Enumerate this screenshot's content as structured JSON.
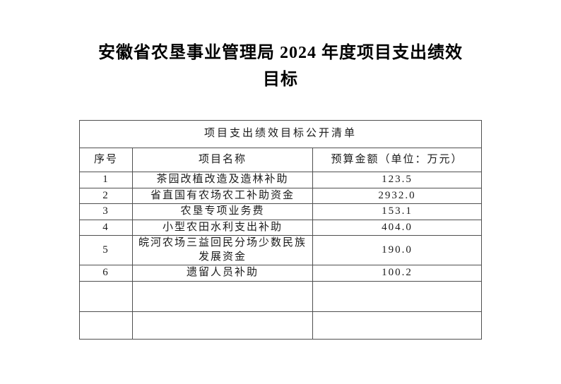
{
  "page": {
    "background_color": "#ffffff",
    "text_color": "#000000",
    "table_border_color": "#4f4f4f"
  },
  "title": {
    "line1": "安徽省农垦事业管理局 2024 年度项目支出绩效",
    "line2": "目标"
  },
  "table": {
    "banner": "项目支出绩效目标公开清单",
    "columns": [
      "序号",
      "项目名称",
      "预算金额（单位：万元）"
    ],
    "rows": [
      {
        "no": "1",
        "name": "茶园改植改造及造林补助",
        "amount": "123.5"
      },
      {
        "no": "2",
        "name": "省直国有农场农工补助资金",
        "amount": "2932.0"
      },
      {
        "no": "3",
        "name": "农垦专项业务费",
        "amount": "153.1"
      },
      {
        "no": "4",
        "name": "小型农田水利支出补助",
        "amount": "404.0"
      },
      {
        "no": "5",
        "name": "皖河农场三益回民分场少数民族发展资金",
        "amount": "190.0"
      },
      {
        "no": "6",
        "name": "遗留人员补助",
        "amount": "100.2"
      },
      {
        "no": "",
        "name": "",
        "amount": ""
      },
      {
        "no": "",
        "name": "",
        "amount": ""
      }
    ]
  }
}
